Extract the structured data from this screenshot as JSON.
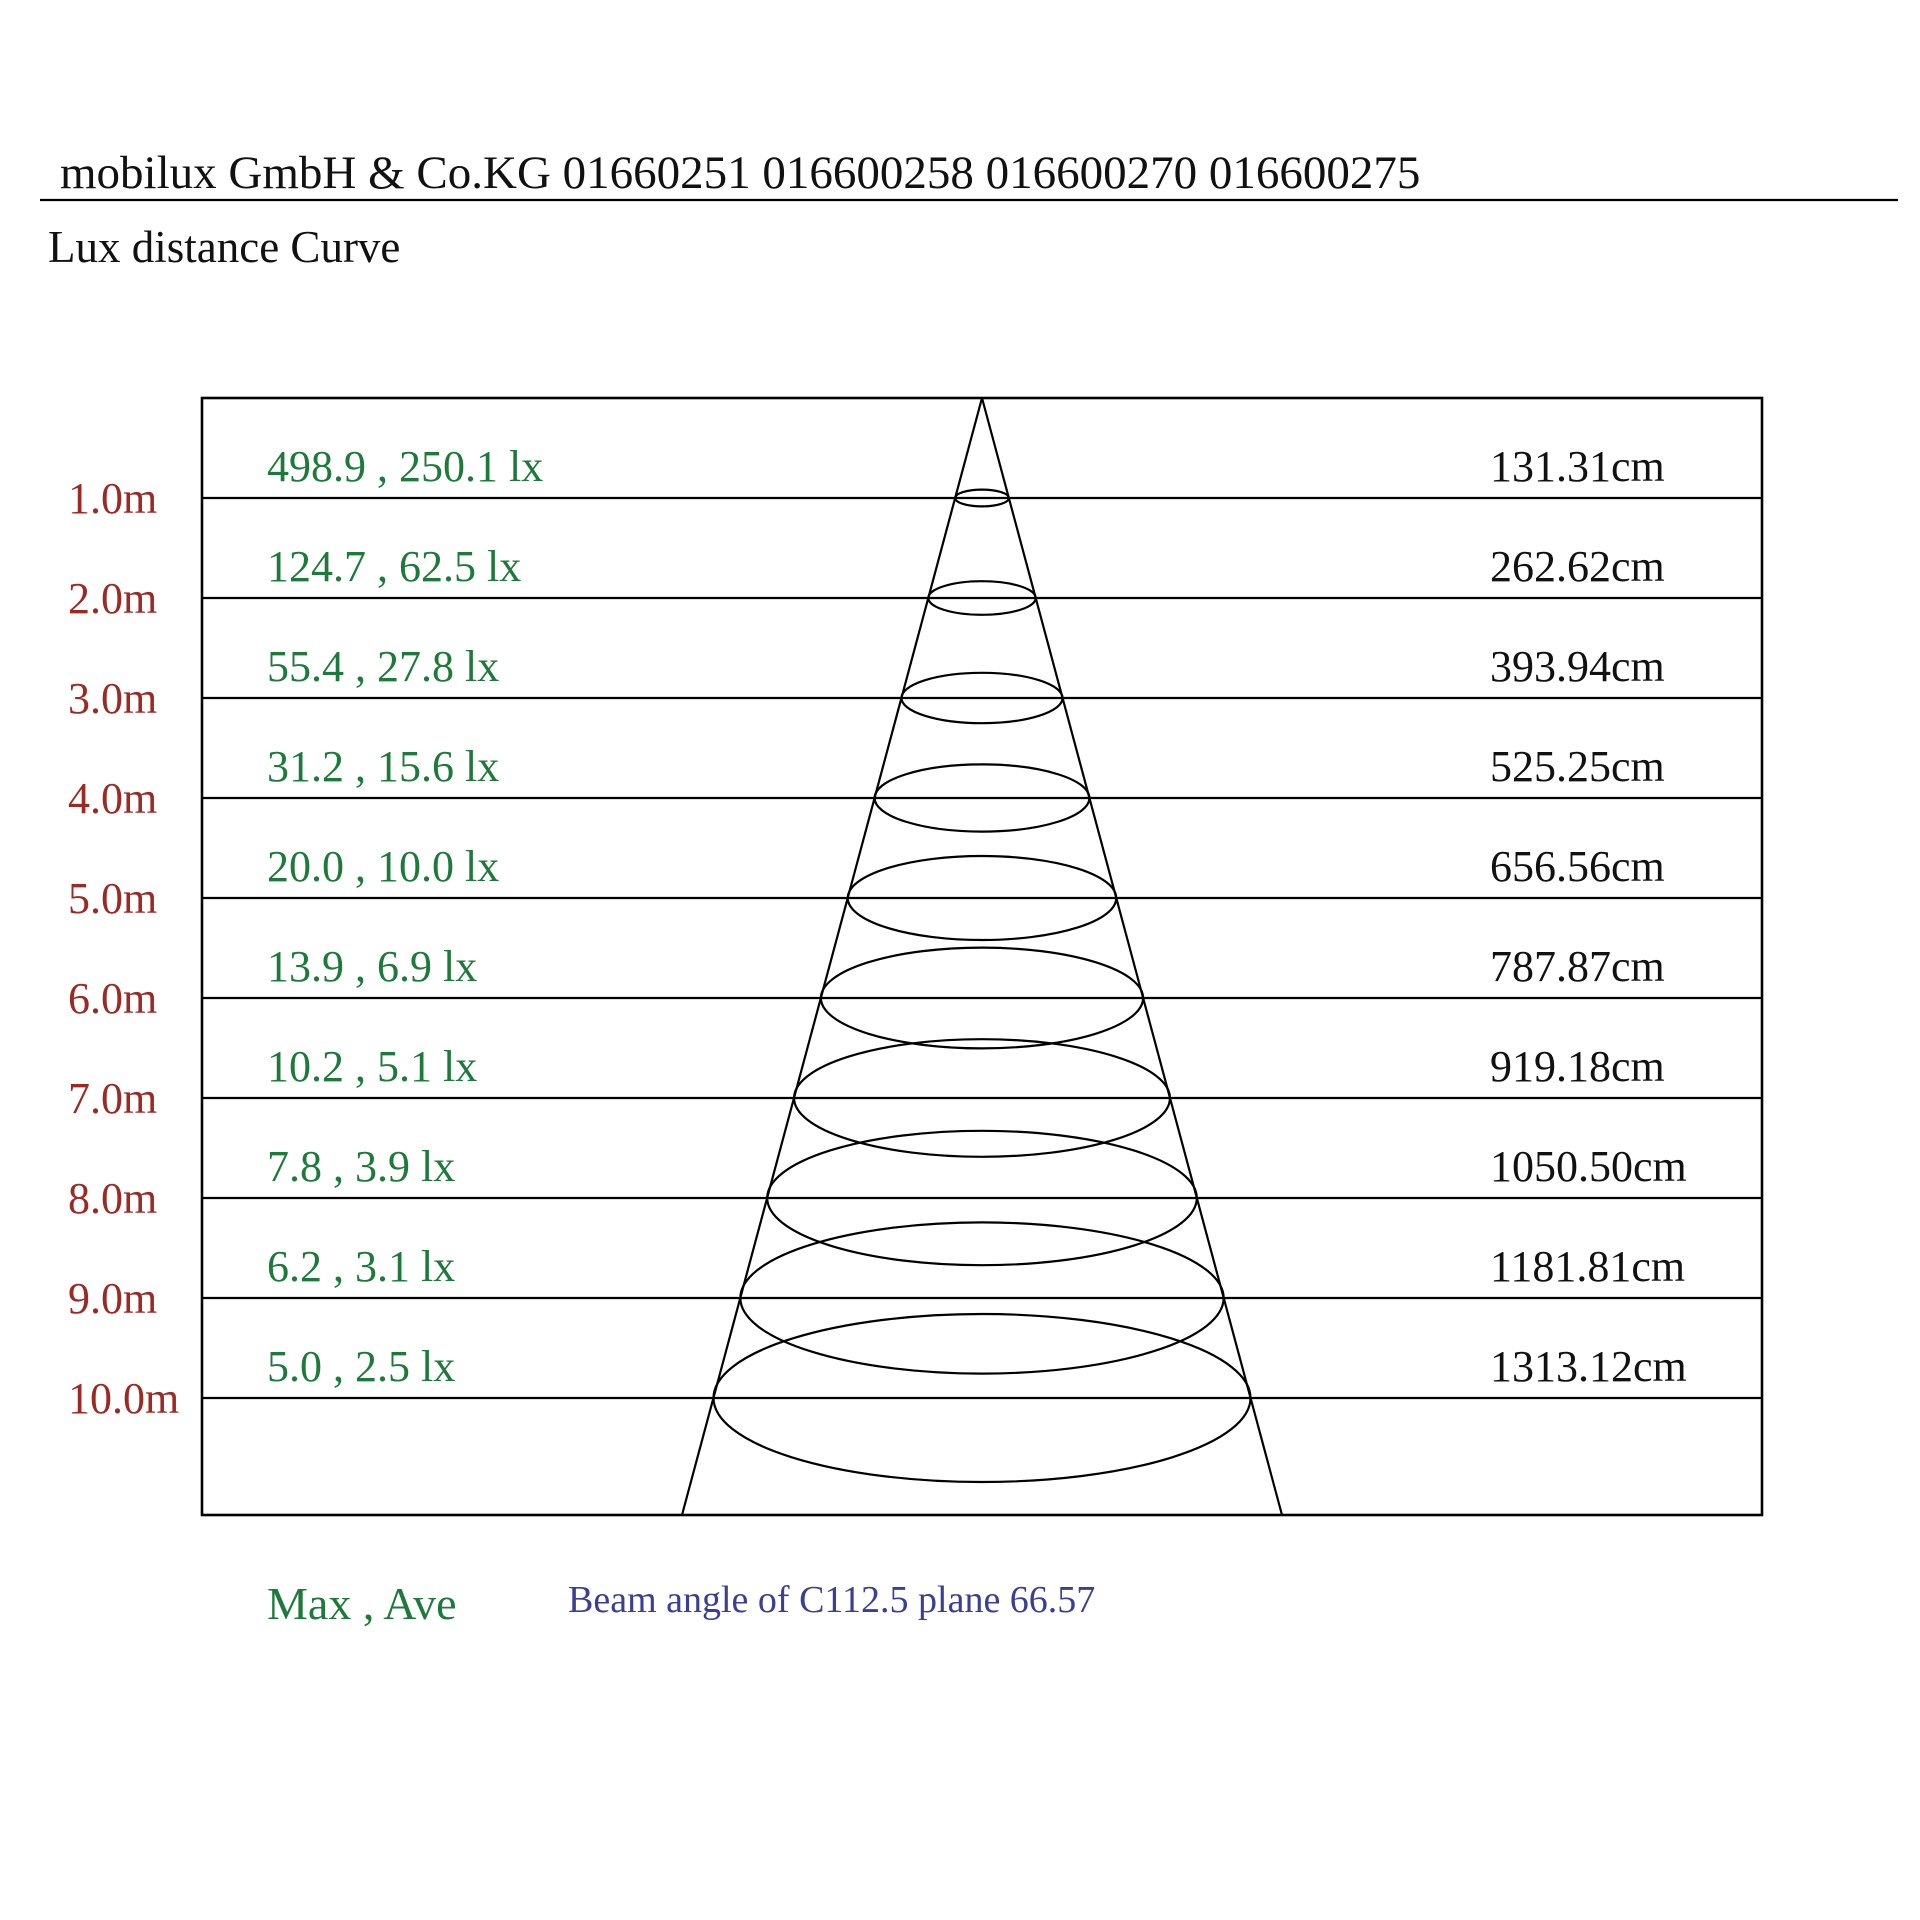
{
  "header": {
    "company": "mobilux GmbH & Co.KG 01660251  016600258  016600270   016600275",
    "subtitle": "Lux distance Curve"
  },
  "rows": [
    {
      "distance": "1.0m",
      "lux": "498.9 , 250.1 lx",
      "diameter": "131.31cm"
    },
    {
      "distance": "2.0m",
      "lux": "124.7 , 62.5 lx",
      "diameter": "262.62cm"
    },
    {
      "distance": "3.0m",
      "lux": "55.4 , 27.8 lx",
      "diameter": "393.94cm"
    },
    {
      "distance": "4.0m",
      "lux": "31.2 , 15.6 lx",
      "diameter": "525.25cm"
    },
    {
      "distance": "5.0m",
      "lux": "20.0 , 10.0 lx",
      "diameter": "656.56cm"
    },
    {
      "distance": "6.0m",
      "lux": "13.9 , 6.9 lx",
      "diameter": "787.87cm"
    },
    {
      "distance": "7.0m",
      "lux": "10.2 , 5.1 lx",
      "diameter": "919.18cm"
    },
    {
      "distance": "8.0m",
      "lux": "7.8 , 3.9 lx",
      "diameter": "1050.50cm"
    },
    {
      "distance": "9.0m",
      "lux": "6.2 , 3.1 lx",
      "diameter": "1181.81cm"
    },
    {
      "distance": "10.0m",
      "lux": "5.0 , 2.5 lx",
      "diameter": "1313.12cm"
    }
  ],
  "legend": {
    "lux_key": "Max , Ave",
    "beam_angle": "Beam angle of C112.5 plane 66.57"
  },
  "colors": {
    "distance": "#9b2a24",
    "lux": "#1d7a3a",
    "diameter": "#111111",
    "beam": "#3a3f95",
    "lines": "#000000"
  }
}
